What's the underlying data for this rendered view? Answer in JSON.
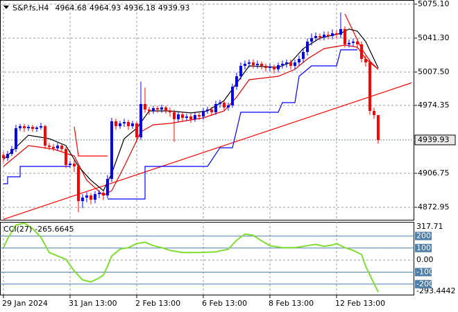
{
  "chart_data": {
    "type": "candlestick",
    "title": "S&P.fs,H4",
    "xlim": [
      -0.83,
      98.67
    ],
    "xticks": [
      {
        "value": 0,
        "label": "29 Jan 2024"
      },
      {
        "value": 16,
        "label": "31 Jan 13:00"
      },
      {
        "value": 32,
        "label": "2 Feb 13:00"
      },
      {
        "value": 48,
        "label": "6 Feb 13:00"
      },
      {
        "value": 64,
        "label": "8 Feb 13:00"
      },
      {
        "value": 80,
        "label": "12 Feb 13:00"
      }
    ],
    "ylim": [
      4859.8,
      5079.24
    ],
    "yticks": [
      {
        "value": 5075.1,
        "label": "5075.10"
      },
      {
        "value": 5041.3,
        "label": "5041.30"
      },
      {
        "value": 5007.5,
        "label": "5007.50"
      },
      4974.35,
      4906.75,
      4872.95
    ],
    "grid": true,
    "up_color": "#0000ff",
    "down_color": "#ff0000",
    "open": [
      4925.0,
      4921.9,
      4926.1,
      4930.9,
      4951.6,
      4953.7,
      4951.6,
      4953.0,
      4950.9,
      4952.3,
      4953.7,
      4934.3,
      4933.0,
      4931.6,
      4934.3,
      4930.9,
      4915.0,
      4916.4,
      4913.6,
      4879.1,
      4882.6,
      4884.7,
      4880.5,
      4886.0,
      4887.4,
      4884.7,
      4901.2,
      4958.5,
      4953.7,
      4956.4,
      4957.8,
      4953.7,
      4956.4,
      4942.6,
      4975.7,
      4970.2,
      4968.8,
      4971.6,
      4970.2,
      4972.3,
      4968.8,
      4967.5,
      4960.6,
      4965.4,
      4961.9,
      4963.3,
      4960.6,
      4964.7,
      4963.3,
      4968.8,
      4970.2,
      4967.5,
      4975.7,
      4977.1,
      4972.3,
      4974.4,
      4993.0,
      5003.3,
      5013.7,
      5015.8,
      5017.1,
      5014.4,
      5015.8,
      5013.7,
      5011.6,
      5013.0,
      5010.2,
      5014.4,
      5015.8,
      5017.1,
      5013.7,
      5017.1,
      5020.6,
      5027.5,
      5037.8,
      5041.3,
      5043.4,
      5042.0,
      5044.7,
      5043.4,
      5046.1,
      5044.7,
      5050.3,
      5035.1,
      5036.5,
      5037.8,
      5035.1,
      5020.6,
      5017.1,
      4968.8,
      4964.68
    ],
    "high": [
      4928,
      4929,
      4934,
      4955,
      4956,
      4956,
      4955,
      4955,
      4954,
      4957,
      4955,
      4937,
      4936,
      4937,
      4936,
      4933,
      4919,
      4920,
      4916,
      4886,
      4888,
      4887,
      4889,
      4890,
      4889,
      4905,
      4962,
      4961,
      4959,
      4961,
      4960,
      4959,
      4958,
      4998,
      4992,
      4973,
      4974,
      4974,
      4975,
      4974,
      4972,
      4970,
      4968,
      4968,
      4966,
      4966,
      4967,
      4967,
      4972,
      4973,
      4973,
      4979,
      4980,
      4980,
      4977,
      4996,
      5007,
      5017,
      5019,
      5020,
      5020,
      5019,
      5018,
      5016,
      5016,
      5015,
      5017,
      5019,
      5020,
      5020,
      5020,
      5024,
      5031,
      5041,
      5046,
      5047,
      5046,
      5048,
      5048,
      5050,
      5049,
      5066.8,
      5053,
      5040,
      5041,
      5041,
      5038,
      5024,
      5020,
      4972,
      4964.93
    ],
    "low": [
      4918,
      4919,
      4924,
      4928,
      4949,
      4948,
      4949,
      4948,
      4948,
      4950,
      4931,
      4930,
      4929,
      4929,
      4928,
      4912,
      4912,
      4908,
      4868,
      4872,
      4878,
      4876,
      4877,
      4882,
      4880,
      4882,
      4898,
      4950,
      4951,
      4953,
      4950,
      4951,
      4938,
      4940,
      4967,
      4965,
      4966,
      4967,
      4967,
      4966,
      4963,
      4938,
      4958,
      4958,
      4959,
      4957,
      4958,
      4960,
      4960,
      4966,
      4964,
      4965,
      4972,
      4969,
      4969,
      4972,
      4990,
      5000,
      5010,
      5012,
      5011,
      5011,
      5010,
      5008,
      5008,
      5006,
      5007,
      5011,
      5012,
      5010,
      5010,
      5014,
      5017,
      5024,
      5034,
      5038,
      5039,
      5039,
      5040,
      5040,
      5041,
      5041,
      5032,
      5032,
      5033,
      5031,
      5017,
      5013,
      4965,
      4961,
      4936.18
    ],
    "close": [
      4921.9,
      4926.1,
      4930.9,
      4951.6,
      4953.7,
      4951.6,
      4953.0,
      4950.9,
      4952.3,
      4953.7,
      4934.3,
      4933.0,
      4931.6,
      4934.3,
      4930.9,
      4915.0,
      4916.4,
      4913.6,
      4879.1,
      4882.6,
      4884.7,
      4880.5,
      4886.0,
      4887.4,
      4884.7,
      4901.2,
      4958.5,
      4953.7,
      4956.4,
      4957.8,
      4953.7,
      4956.4,
      4942.6,
      4975.7,
      4970.2,
      4968.8,
      4971.6,
      4970.2,
      4972.3,
      4968.8,
      4967.5,
      4960.6,
      4965.4,
      4961.9,
      4963.3,
      4960.6,
      4964.7,
      4963.3,
      4968.8,
      4970.2,
      4967.5,
      4975.7,
      4977.1,
      4972.3,
      4974.4,
      4993.0,
      5003.3,
      5013.7,
      5015.8,
      5017.1,
      5014.4,
      5015.8,
      5013.7,
      5011.6,
      5013.0,
      5010.2,
      5014.4,
      5015.8,
      5017.1,
      5013.7,
      5017.1,
      5020.6,
      5027.5,
      5037.8,
      5041.3,
      5043.4,
      5042.0,
      5044.7,
      5043.4,
      5046.1,
      5044.7,
      5050.3,
      5035.1,
      5036.5,
      5037.8,
      5035.1,
      5020.6,
      5017.1,
      4968.8,
      4964.68,
      4939.93
    ],
    "overlays": [
      {
        "color": "#ff0000",
        "x": [
          0,
          98
        ],
        "values": [
          4861.0,
          4996.8
        ]
      },
      {
        "color": "#0000ff",
        "x": [
          0,
          1,
          1,
          4,
          4,
          16
        ],
        "values": [
          4896.4,
          4896.4,
          4903.3,
          4903.3,
          4913.6,
          4913.6
        ]
      },
      {
        "color": "#ff0000",
        "x": [
          17,
          18,
          25
        ],
        "values": [
          4953.0,
          4924.0,
          4924.0
        ]
      },
      {
        "color": "#0000ff",
        "x": [
          25,
          34,
          34,
          49,
          52,
          55,
          57,
          66,
          67,
          70,
          71,
          74,
          80,
          81,
          85
        ],
        "values": [
          4881.2,
          4881.2,
          4913.6,
          4913.6,
          4932.2,
          4932.2,
          4967.5,
          4967.5,
          4977.1,
          4977.1,
          5003.3,
          5013.7,
          5013.7,
          5029.6,
          5029.6
        ]
      },
      {
        "color": "#ff0000",
        "x": [
          82,
          86,
          88,
          90
        ],
        "values": [
          5065.4,
          5030.9,
          5018.5,
          5010.2
        ]
      },
      {
        "color": "#e00000",
        "x": [
          0,
          6,
          12,
          17,
          20,
          24,
          26,
          29,
          33,
          36,
          40,
          48,
          53,
          56,
          59,
          66,
          70,
          73,
          77,
          82,
          85,
          87,
          90
        ],
        "values": [
          4913.6,
          4934.3,
          4930.9,
          4924.0,
          4899.8,
          4884.7,
          4889.5,
          4913.6,
          4948.1,
          4955.0,
          4956.4,
          4961.9,
          4968.8,
          4982.6,
          4999.9,
          5003.3,
          5010.2,
          5020.6,
          5030.9,
          5034.4,
          5032.3,
          5020.6,
          5010.2
        ]
      },
      {
        "color": "#000000",
        "x": [
          0,
          6,
          11,
          15,
          18,
          21,
          24,
          26,
          29,
          32,
          35,
          40,
          45,
          49,
          53,
          56,
          59,
          66,
          69,
          72,
          76,
          81,
          83,
          85,
          87,
          90
        ],
        "values": [
          4920.5,
          4944.7,
          4941.2,
          4934.3,
          4913.6,
          4899.8,
          4889.5,
          4906.7,
          4941.2,
          4951.6,
          4968.8,
          4968.8,
          4966.8,
          4968.8,
          4979.2,
          4996.4,
          5013.7,
          5012.3,
          5017.1,
          5030.9,
          5041.3,
          5046.1,
          5050.3,
          5048.2,
          5037.8,
          5011.6
        ]
      }
    ],
    "cci": {
      "type": "line",
      "label": "CCI(27)",
      "color": "#7fdd2f",
      "x": [
        0,
        1,
        3,
        5,
        7,
        9,
        11,
        13,
        15,
        17,
        19,
        21,
        23,
        24,
        25,
        26,
        28,
        30,
        32,
        34,
        36,
        38,
        40,
        43,
        47,
        51,
        54,
        56,
        58,
        60,
        62,
        64,
        67,
        70,
        73,
        75,
        77,
        79,
        80,
        82,
        84,
        86,
        87,
        88,
        90
      ],
      "values": [
        103,
        177,
        291,
        308,
        262,
        188,
        63,
        34,
        6,
        -91,
        -165,
        -182,
        -148,
        -125,
        -51,
        34,
        91,
        103,
        137,
        148,
        120,
        103,
        80,
        63,
        63,
        68,
        91,
        165,
        217,
        205,
        160,
        120,
        103,
        103,
        120,
        131,
        114,
        125,
        137,
        103,
        80,
        46,
        -51,
        -125,
        -265.6645
      ],
      "ylim": [
        -293.4442,
        317.71
      ],
      "yticks": [
        317.71,
        {
          "value": 0,
          "label": "0.00"
        },
        -293.4442
      ],
      "levels": [
        200,
        100,
        -100,
        -200
      ],
      "level_color": "#4f7fa8"
    }
  }
}
